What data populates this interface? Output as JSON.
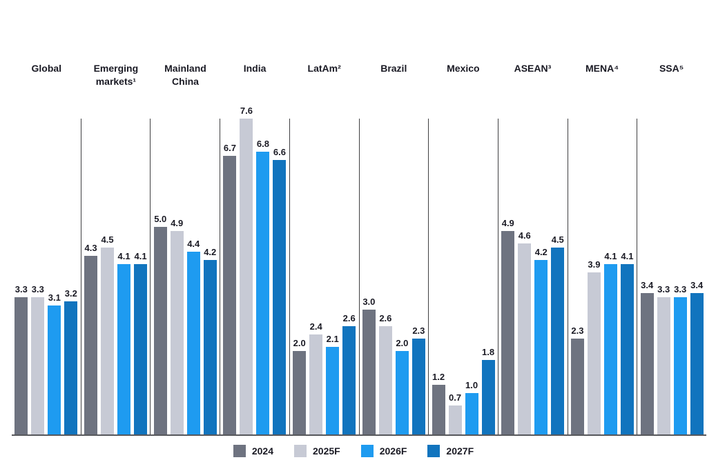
{
  "chart_data": {
    "type": "bar",
    "title": "",
    "categories": [
      "Global",
      "Emerging markets¹",
      "Mainland China",
      "India",
      "LatAm²",
      "Brazil",
      "Mexico",
      "ASEAN³",
      "MENA⁴",
      "SSA⁵"
    ],
    "series": [
      {
        "name": "2024",
        "color": "#6e7380",
        "values": [
          3.3,
          4.3,
          5.0,
          6.7,
          2.0,
          3.0,
          1.2,
          4.9,
          2.3,
          3.4
        ]
      },
      {
        "name": "2025F",
        "color": "#c7cad5",
        "values": [
          3.3,
          4.5,
          4.9,
          7.6,
          2.4,
          2.6,
          0.7,
          4.6,
          3.9,
          3.3
        ]
      },
      {
        "name": "2026F",
        "color": "#1e9bf0",
        "values": [
          3.1,
          4.1,
          4.4,
          6.8,
          2.1,
          2.0,
          1.0,
          4.2,
          4.1,
          3.3
        ]
      },
      {
        "name": "2027F",
        "color": "#1174be",
        "values": [
          3.2,
          4.1,
          4.2,
          6.6,
          2.6,
          2.3,
          1.8,
          4.5,
          4.1,
          3.4
        ]
      }
    ],
    "ylim": [
      0,
      7.6
    ],
    "value_labels": true,
    "value_label_format": "one_decimal",
    "grid": false,
    "legend_position": "bottom",
    "axis_line_color": "#56575b",
    "separator_line_color": "#3f3f41"
  }
}
